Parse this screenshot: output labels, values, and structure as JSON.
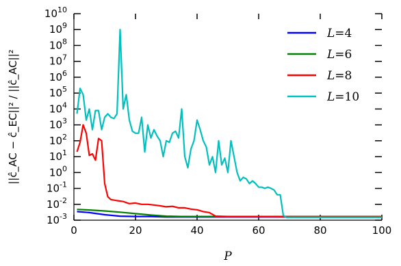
{
  "chart_data": {
    "type": "line",
    "xlabel": "P",
    "ylabel": "||ĉ_AC − ĉ_EC||² / ||ĉ_AC||²",
    "xlim": [
      0,
      100
    ],
    "ylim_log10": [
      -3,
      10
    ],
    "y_scale": "log",
    "grid": false,
    "legend_position": "top-right",
    "x_ticks": [
      "0",
      "20",
      "40",
      "60",
      "80",
      "100"
    ],
    "y_tick_exponents": [
      "-3",
      "-2",
      "-1",
      "0",
      "1",
      "2",
      "3",
      "4",
      "5",
      "6",
      "7",
      "8",
      "9",
      "10"
    ],
    "y_tick_base": "10",
    "series": [
      {
        "name": "L = 4",
        "legend_var": "L",
        "legend_val": "4",
        "color": "#0000ff",
        "x": [
          1,
          5,
          10,
          15,
          20,
          25,
          30,
          35,
          40,
          45,
          50,
          60,
          70,
          80,
          90,
          100
        ],
        "y": [
          0.0035,
          0.003,
          0.0022,
          0.0018,
          0.0017,
          0.0017,
          0.0016,
          0.0016,
          0.0016,
          0.0016,
          0.0016,
          0.0016,
          0.0016,
          0.0016,
          0.0016,
          0.0016
        ]
      },
      {
        "name": "L = 6",
        "legend_var": "L",
        "legend_val": "6",
        "color": "#008000",
        "x": [
          1,
          5,
          10,
          15,
          20,
          25,
          30,
          35,
          40,
          45,
          50,
          60,
          70,
          80,
          90,
          100
        ],
        "y": [
          0.0048,
          0.0044,
          0.0038,
          0.0032,
          0.0026,
          0.0021,
          0.0018,
          0.0017,
          0.0017,
          0.0017,
          0.0017,
          0.0017,
          0.0017,
          0.0017,
          0.0017,
          0.0017
        ]
      },
      {
        "name": "L = 8",
        "legend_var": "L",
        "legend_val": "8",
        "color": "#ff0000",
        "x": [
          1,
          2,
          3,
          4,
          5,
          6,
          7,
          8,
          9,
          10,
          11,
          12,
          14,
          16,
          18,
          20,
          22,
          24,
          26,
          28,
          30,
          32,
          34,
          36,
          38,
          40,
          42,
          44,
          46,
          50,
          60,
          70,
          80,
          90,
          100
        ],
        "y": [
          20,
          80,
          1000,
          300,
          12,
          15,
          6,
          140,
          100,
          0.2,
          0.03,
          0.02,
          0.017,
          0.015,
          0.011,
          0.012,
          0.01,
          0.01,
          0.009,
          0.008,
          0.007,
          0.0075,
          0.006,
          0.006,
          0.005,
          0.0045,
          0.0035,
          0.003,
          0.0018,
          0.0017,
          0.0017,
          0.0016,
          0.0016,
          0.0016,
          0.0016
        ]
      },
      {
        "name": "L = 10",
        "legend_var": "L",
        "legend_val": "10",
        "color": "#00bfbf",
        "x": [
          1,
          2,
          3,
          4,
          5,
          6,
          7,
          8,
          9,
          10,
          11,
          12,
          13,
          14,
          15,
          16,
          17,
          18,
          19,
          20,
          21,
          22,
          23,
          24,
          25,
          26,
          27,
          28,
          29,
          30,
          31,
          32,
          33,
          34,
          35,
          36,
          37,
          38,
          39,
          40,
          41,
          42,
          43,
          44,
          45,
          46,
          47,
          48,
          49,
          50,
          51,
          52,
          53,
          54,
          55,
          56,
          57,
          58,
          59,
          60,
          61,
          62,
          63,
          64,
          65,
          66,
          67,
          68,
          69,
          70,
          75,
          80,
          90,
          100
        ],
        "y": [
          5000,
          200000,
          80000,
          2000,
          10000,
          500,
          8000,
          8000,
          500,
          3000,
          5000,
          3000,
          2500,
          5000,
          1000000000,
          10000,
          80000,
          2000,
          400,
          300,
          300,
          3000,
          20,
          1000,
          150,
          500,
          200,
          100,
          10,
          100,
          80,
          300,
          400,
          150,
          10000,
          10,
          2,
          30,
          100,
          2000,
          500,
          100,
          40,
          3,
          10,
          1,
          100,
          3,
          8,
          1,
          100,
          10,
          1,
          0.3,
          0.5,
          0.4,
          0.2,
          0.3,
          0.2,
          0.12,
          0.12,
          0.1,
          0.12,
          0.1,
          0.08,
          0.04,
          0.04,
          0.002,
          0.0015,
          0.0015,
          0.0015,
          0.0015,
          0.0015,
          0.0015
        ]
      }
    ]
  }
}
